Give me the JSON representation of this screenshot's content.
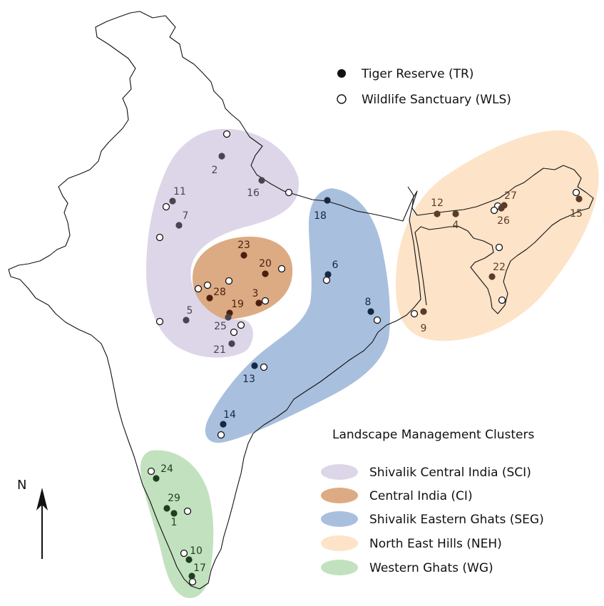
{
  "legend_markers": {
    "tiger_reserve": "Tiger Reserve (TR)",
    "wildlife_sanctuary": "Wildlife Sanctuary (WLS)"
  },
  "legend_clusters": {
    "title": "Landscape Management Clusters",
    "items": [
      {
        "id": "SCI",
        "label": "Shivalik Central India (SCI)",
        "color": "#ddd6e8"
      },
      {
        "id": "CI",
        "label": "Central India (CI)",
        "color": "#dcab84"
      },
      {
        "id": "SEG",
        "label": "Shivalik Eastern Ghats (SEG)",
        "color": "#a9bfde"
      },
      {
        "id": "NEH",
        "label": "North East Hills (NEH)",
        "color": "#fde3c8"
      },
      {
        "id": "WG",
        "label": "Western Ghats (WG)",
        "color": "#c2e2bf"
      }
    ]
  },
  "north_arrow": {
    "label": "N"
  },
  "colors": {
    "SCI_dot": "#4a4450",
    "CI_dot": "#4a1f0c",
    "SEG_dot": "#162844",
    "NEH_dot": "#5a3d28",
    "WG_dot": "#1d3f1d",
    "outline": "#111111"
  },
  "tiger_reserves": [
    {
      "label": "1",
      "cluster": "WG"
    },
    {
      "label": "2",
      "cluster": "SCI"
    },
    {
      "label": "3",
      "cluster": "CI"
    },
    {
      "label": "4",
      "cluster": "NEH"
    },
    {
      "label": "5",
      "cluster": "SCI"
    },
    {
      "label": "6",
      "cluster": "SEG"
    },
    {
      "label": "7",
      "cluster": "SCI"
    },
    {
      "label": "8",
      "cluster": "SEG"
    },
    {
      "label": "9",
      "cluster": "NEH"
    },
    {
      "label": "10",
      "cluster": "WG"
    },
    {
      "label": "11",
      "cluster": "SCI"
    },
    {
      "label": "12",
      "cluster": "NEH"
    },
    {
      "label": "13",
      "cluster": "SEG"
    },
    {
      "label": "14",
      "cluster": "SEG"
    },
    {
      "label": "15",
      "cluster": "NEH"
    },
    {
      "label": "16",
      "cluster": "SCI"
    },
    {
      "label": "17",
      "cluster": "WG"
    },
    {
      "label": "18",
      "cluster": "SEG"
    },
    {
      "label": "19",
      "cluster": "CI"
    },
    {
      "label": "20",
      "cluster": "CI"
    },
    {
      "label": "21",
      "cluster": "SCI"
    },
    {
      "label": "22",
      "cluster": "NEH"
    },
    {
      "label": "23",
      "cluster": "CI"
    },
    {
      "label": "24",
      "cluster": "WG"
    },
    {
      "label": "25",
      "cluster": "SCI"
    },
    {
      "label": "26",
      "cluster": "NEH"
    },
    {
      "label": "27",
      "cluster": "NEH"
    },
    {
      "label": "28",
      "cluster": "CI"
    },
    {
      "label": "29",
      "cluster": "WG"
    }
  ]
}
